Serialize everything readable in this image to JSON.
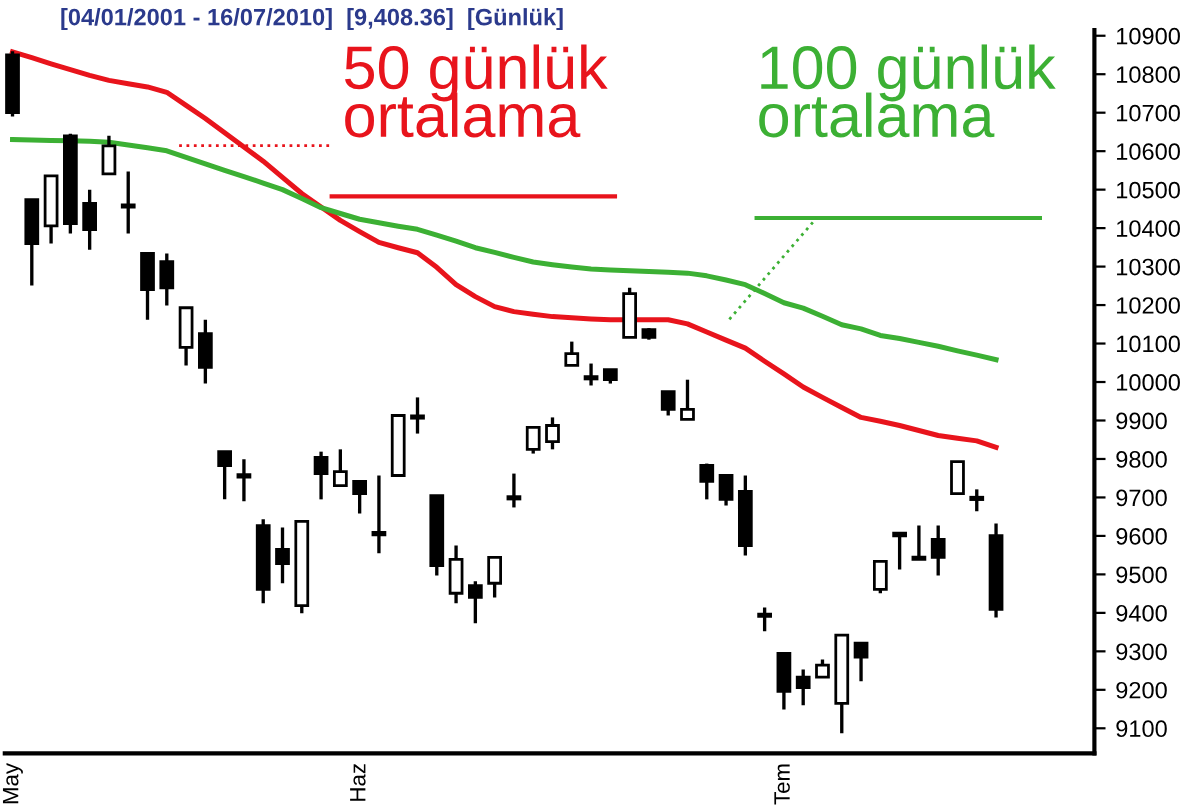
{
  "chart_data": {
    "type": "candlestick",
    "title": "[04/01/2001 - 16/07/2010]  [9,408.36]  [Günlük]",
    "categories": [
      "May",
      null,
      null,
      null,
      null,
      null,
      null,
      null,
      null,
      null,
      null,
      null,
      null,
      null,
      null,
      null,
      null,
      null,
      "Haz",
      null,
      null,
      null,
      null,
      null,
      null,
      null,
      null,
      null,
      null,
      null,
      null,
      null,
      null,
      null,
      null,
      null,
      null,
      null,
      null,
      null,
      "Tem",
      null,
      null,
      null,
      null,
      null,
      null,
      null,
      null,
      null,
      null,
      null
    ],
    "ohlc": [
      [
        10850,
        10860,
        10690,
        10700
      ],
      [
        10474,
        10474,
        10251,
        10360
      ],
      [
        10406,
        10536,
        10360,
        10536
      ],
      [
        10640,
        10645,
        10386,
        10412
      ],
      [
        10464,
        10500,
        10344,
        10396
      ],
      [
        10541,
        10640,
        10541,
        10614
      ],
      [
        10460,
        10547,
        10386,
        10455
      ],
      [
        10334,
        10334,
        10162,
        10240
      ],
      [
        10313,
        10334,
        10199,
        10245
      ],
      [
        10090,
        10193,
        10043,
        10193
      ],
      [
        10126,
        10162,
        9996,
        10038
      ],
      [
        9819,
        9819,
        9695,
        9783
      ],
      [
        9757,
        9799,
        9690,
        9755
      ],
      [
        9627,
        9643,
        9425,
        9461
      ],
      [
        9565,
        9622,
        9477,
        9528
      ],
      [
        9419,
        9638,
        9399,
        9638
      ],
      [
        9804,
        9819,
        9695,
        9762
      ],
      [
        9731,
        9825,
        9731,
        9767
      ],
      [
        9742,
        9742,
        9658,
        9710
      ],
      [
        9607,
        9757,
        9555,
        9605
      ],
      [
        9757,
        9913,
        9757,
        9913
      ],
      [
        9910,
        9960,
        9866,
        9908
      ],
      [
        9705,
        9705,
        9497,
        9523
      ],
      [
        9451,
        9575,
        9425,
        9539
      ],
      [
        9471,
        9482,
        9373,
        9440
      ],
      [
        9477,
        9544,
        9440,
        9544
      ],
      [
        9700,
        9762,
        9674,
        9698
      ],
      [
        9825,
        9882,
        9814,
        9882
      ],
      [
        9845,
        9908,
        9825,
        9887
      ],
      [
        10043,
        10105,
        10043,
        10074
      ],
      [
        10012,
        10048,
        9991,
        10010
      ],
      [
        10032,
        10032,
        9996,
        10006
      ],
      [
        10116,
        10245,
        10116,
        10230
      ],
      [
        10136,
        10140,
        10110,
        10116
      ],
      [
        9975,
        9975,
        9913,
        9929
      ],
      [
        9903,
        10006,
        9903,
        9929
      ],
      [
        9783,
        9788,
        9695,
        9742
      ],
      [
        9757,
        9757,
        9679,
        9695
      ],
      [
        9716,
        9757,
        9549,
        9575
      ],
      [
        9395,
        9414,
        9352,
        9393
      ],
      [
        9295,
        9295,
        9149,
        9196
      ],
      [
        9233,
        9253,
        9160,
        9206
      ],
      [
        9233,
        9279,
        9233,
        9264
      ],
      [
        9165,
        9342,
        9087,
        9342
      ],
      [
        9321,
        9321,
        9222,
        9285
      ],
      [
        9461,
        9534,
        9451,
        9534
      ],
      [
        9607,
        9607,
        9513,
        9600
      ],
      [
        9544,
        9627,
        9539,
        9540
      ],
      [
        9591,
        9627,
        9497,
        9544
      ],
      [
        9710,
        9793,
        9710,
        9793
      ],
      [
        9700,
        9721,
        9664,
        9695
      ],
      [
        9601,
        9632,
        9388,
        9409
      ]
    ],
    "series": [
      {
        "type": "line",
        "name": "50 günlük\nortalama",
        "color": "#e8141c",
        "values": [
          10858,
          10843,
          10827,
          10812,
          10797,
          10784,
          10775,
          10767,
          10753,
          10719,
          10685,
          10648,
          10611,
          10574,
          10532,
          10490,
          10455,
          10420,
          10391,
          10363,
          10349,
          10336,
          10298,
          10253,
          10222,
          10196,
          10183,
          10176,
          10170,
          10167,
          10164,
          10162,
          10162,
          10162,
          10162,
          10151,
          10130,
          10109,
          10088,
          10054,
          10021,
          9987,
          9960,
          9934,
          9908,
          9898,
          9887,
          9874,
          9861,
          9854,
          9847,
          9830
        ]
      },
      {
        "type": "line",
        "name": "100 günlük\nortalama",
        "color": "#3cb034",
        "values": [
          10630,
          10629,
          10628,
          10627,
          10626,
          10623,
          10616,
          10609,
          10601,
          10584,
          10567,
          10550,
          10534,
          10517,
          10500,
          10477,
          10453,
          10438,
          10423,
          10414,
          10405,
          10397,
          10382,
          10366,
          10349,
          10337,
          10324,
          10312,
          10305,
          10299,
          10294,
          10291,
          10289,
          10287,
          10285,
          10283,
          10276,
          10265,
          10253,
          10230,
          10206,
          10192,
          10171,
          10149,
          10138,
          10121,
          10113,
          10103,
          10093,
          10081,
          10070,
          10058
        ]
      }
    ],
    "ylim": [
      9035,
      10915
    ],
    "yticks": [
      9100,
      9200,
      9300,
      9400,
      9500,
      9600,
      9700,
      9800,
      9900,
      10000,
      10100,
      10200,
      10300,
      10400,
      10500,
      10600,
      10700,
      10800,
      10900
    ],
    "grid": false,
    "legend": false
  }
}
